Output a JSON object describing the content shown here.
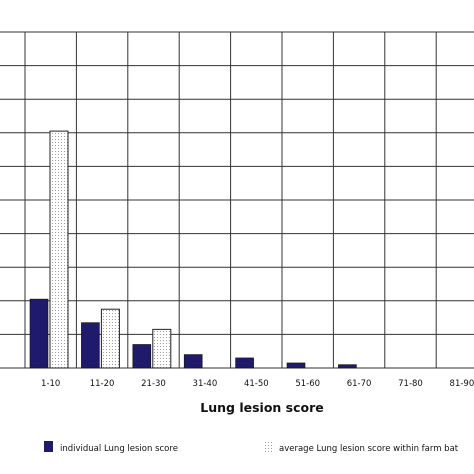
{
  "chart_data": {
    "type": "bar",
    "categories": [
      "1-10",
      "11-20",
      "21-30",
      "31-40",
      "41-50",
      "51-60",
      "61-70",
      "71-80",
      "81-90"
    ],
    "series": [
      {
        "name": "individual Lung lesion score",
        "values": [
          41,
          27,
          14,
          8,
          6,
          3,
          2,
          0,
          0
        ]
      },
      {
        "name": "average Lung lesion score within farm bat",
        "values": [
          141,
          35,
          23,
          0,
          0,
          0,
          0,
          0,
          0
        ]
      }
    ],
    "title": "",
    "xlabel": "Lung lesion score",
    "ylabel": "",
    "ylim": [
      0,
      200
    ],
    "grid": true,
    "legend_position": "bottom",
    "colors": {
      "individual": "#1f1a6b",
      "average_pattern": "#8a8a8a",
      "grid": "#333333"
    }
  }
}
